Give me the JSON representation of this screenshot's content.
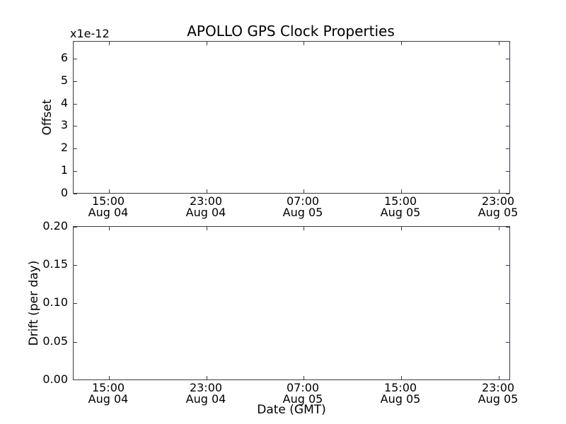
{
  "figure": {
    "title": "APOLLO GPS Clock Properties",
    "background_color": "#ffffff",
    "spine_color": "#3a3a48",
    "text_color": "#000000"
  },
  "top_plot": {
    "offset_label": "x1e-12",
    "ylabel": "Offset",
    "yticks": [
      "6",
      "5",
      "4",
      "3",
      "2",
      "1",
      "0"
    ]
  },
  "bottom_plot": {
    "ylabel": "Drift (per day)",
    "xlabel": "Date (GMT)",
    "yticks": [
      "0.20",
      "0.15",
      "0.10",
      "0.05",
      "0.00"
    ]
  },
  "xticks": [
    {
      "time": "15:00",
      "date": "Aug 04"
    },
    {
      "time": "23:00",
      "date": "Aug 04"
    },
    {
      "time": "07:00",
      "date": "Aug 05"
    },
    {
      "time": "15:00",
      "date": "Aug 05"
    },
    {
      "time": "23:00",
      "date": "Aug 05"
    }
  ],
  "chart_data": [
    {
      "type": "line",
      "title": "APOLLO GPS Clock Properties",
      "xlabel": "",
      "ylabel": "Offset",
      "y_scale_multiplier": "x1e-12",
      "yticks": [
        0,
        1,
        2,
        3,
        4,
        5,
        6
      ],
      "ylim": [
        0,
        6.7
      ],
      "x_tick_labels": [
        "15:00 Aug 04",
        "23:00 Aug 04",
        "07:00 Aug 05",
        "15:00 Aug 05",
        "23:00 Aug 05"
      ],
      "grid": false,
      "legend": null,
      "series": []
    },
    {
      "type": "line",
      "title": "",
      "xlabel": "Date (GMT)",
      "ylabel": "Drift (per day)",
      "yticks": [
        0.0,
        0.05,
        0.1,
        0.15,
        0.2
      ],
      "ylim": [
        0,
        0.2
      ],
      "x_tick_labels": [
        "15:00 Aug 04",
        "23:00 Aug 04",
        "07:00 Aug 05",
        "15:00 Aug 05",
        "23:00 Aug 05"
      ],
      "grid": false,
      "legend": null,
      "series": []
    }
  ]
}
